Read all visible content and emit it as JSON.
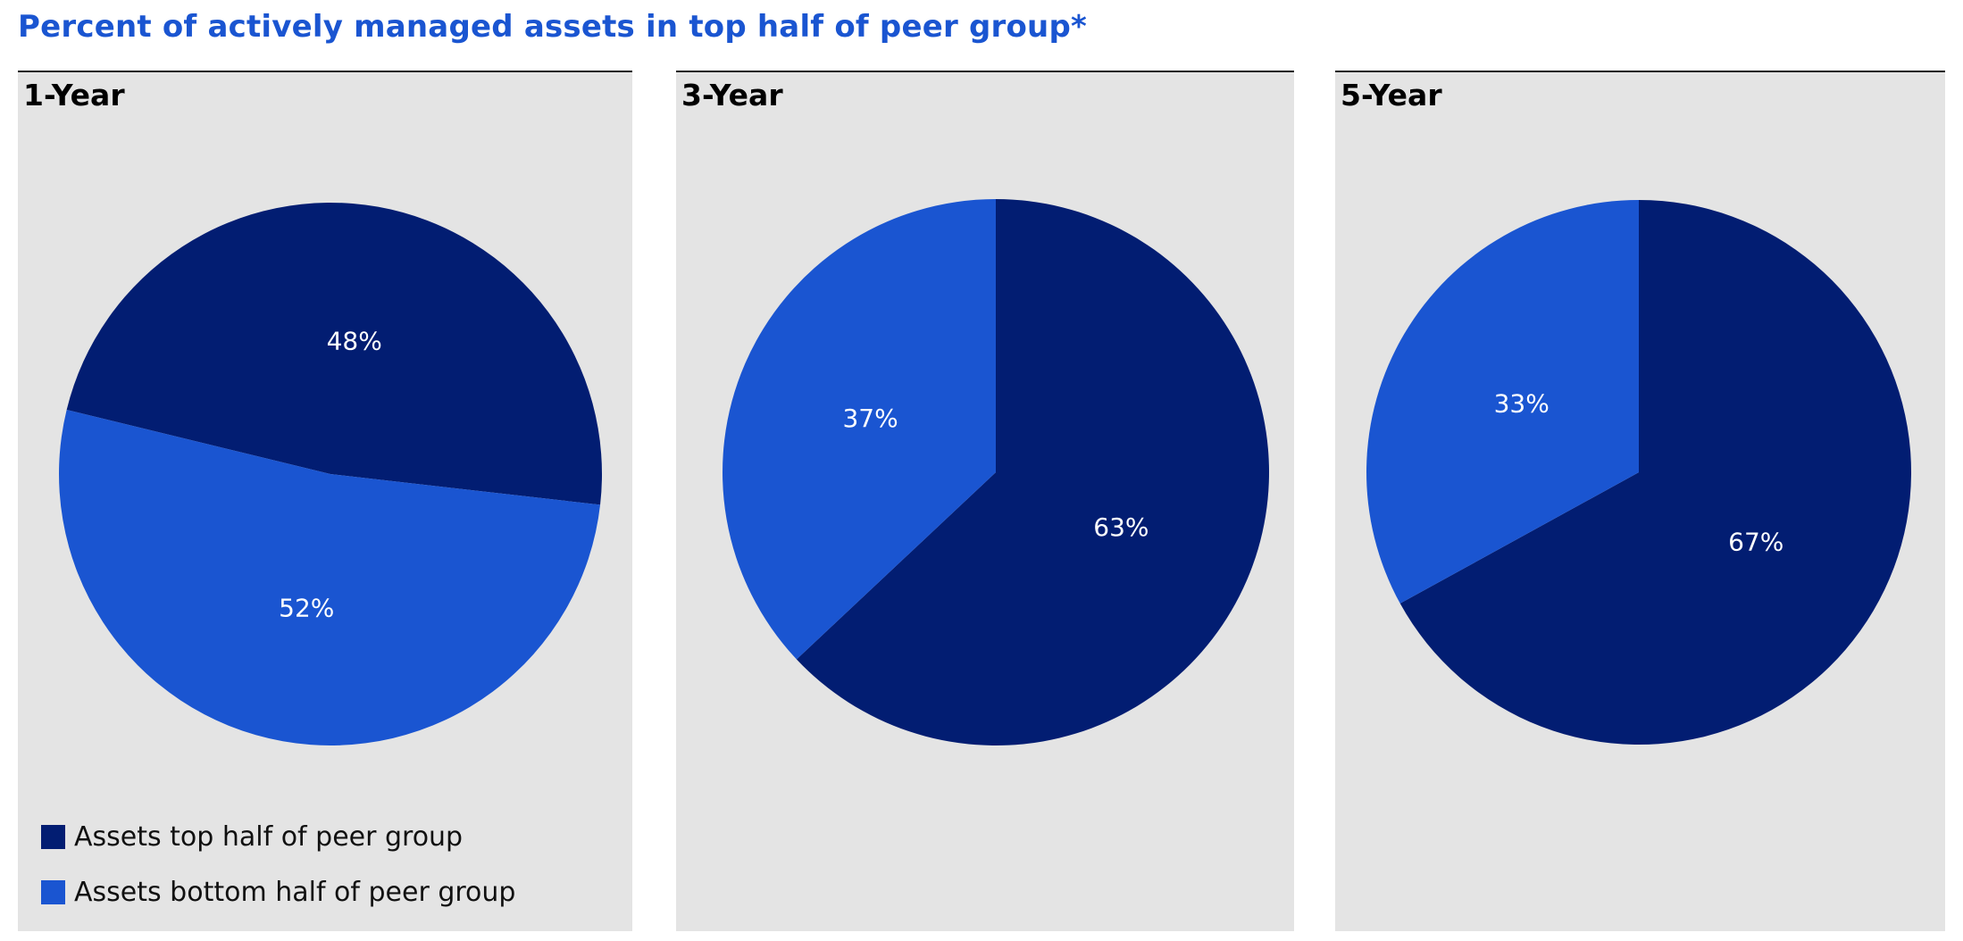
{
  "title": "Percent of actively managed assets in top half of peer group*",
  "colors": {
    "top_half": "#021d72",
    "bottom_half": "#1a55d1",
    "panel_background": "#e4e4e4",
    "title": "#1a55d1"
  },
  "legend": [
    {
      "label": "Assets top half of peer group",
      "color": "#021d72"
    },
    {
      "label": "Assets bottom half of peer group",
      "color": "#1a55d1"
    }
  ],
  "chart_data": [
    {
      "type": "pie",
      "title": "1-Year",
      "slices": [
        {
          "name": "Assets top half of peer group",
          "value": 48,
          "label": "48%",
          "color": "#021d72"
        },
        {
          "name": "Assets bottom half of peer group",
          "value": 52,
          "label": "52%",
          "color": "#1a55d1"
        }
      ],
      "legend": "bottom-left"
    },
    {
      "type": "pie",
      "title": "3-Year",
      "slices": [
        {
          "name": "Assets top half of peer group",
          "value": 63,
          "label": "63%",
          "color": "#021d72"
        },
        {
          "name": "Assets bottom half of peer group",
          "value": 37,
          "label": "37%",
          "color": "#1a55d1"
        }
      ]
    },
    {
      "type": "pie",
      "title": "5-Year",
      "slices": [
        {
          "name": "Assets top half of peer group",
          "value": 67,
          "label": "67%",
          "color": "#021d72"
        },
        {
          "name": "Assets bottom half of peer group",
          "value": 33,
          "label": "33%",
          "color": "#1a55d1"
        }
      ]
    }
  ]
}
